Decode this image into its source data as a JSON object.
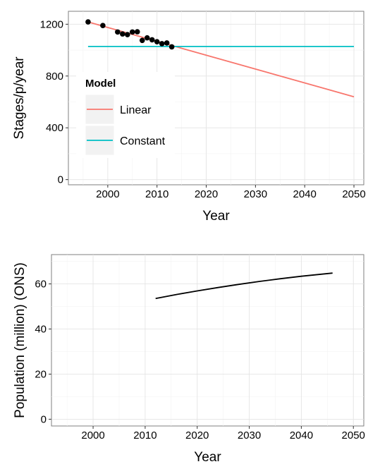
{
  "chart_data": [
    {
      "type": "line",
      "xlabel": "Year",
      "ylabel": "Stages/p/year",
      "xlim": [
        1992,
        2052
      ],
      "ylim": [
        -40,
        1300
      ],
      "x_ticks": [
        2000,
        2010,
        2020,
        2030,
        2040,
        2050
      ],
      "y_ticks": [
        0,
        400,
        800,
        1200
      ],
      "grid": true,
      "legend": {
        "title": "Model",
        "placement": "inside-left"
      },
      "points": {
        "x": [
          1996,
          1999,
          2002,
          2003,
          2004,
          2005,
          2006,
          2007,
          2008,
          2009,
          2010,
          2011,
          2012,
          2013
        ],
        "y": [
          1218,
          1190,
          1140,
          1125,
          1120,
          1140,
          1142,
          1075,
          1095,
          1080,
          1065,
          1050,
          1055,
          1025
        ]
      },
      "series": [
        {
          "name": "Linear",
          "color": "#F8766D",
          "x": [
            1996,
            2050
          ],
          "y": [
            1218,
            640
          ]
        },
        {
          "name": "Constant",
          "color": "#00BFC4",
          "x": [
            1996,
            2050
          ],
          "y": [
            1028,
            1028
          ]
        }
      ]
    },
    {
      "type": "line",
      "xlabel": "Year",
      "ylabel": "Population (million) (ONS)",
      "xlim": [
        1992,
        2052
      ],
      "ylim": [
        -3,
        73
      ],
      "x_ticks": [
        2000,
        2010,
        2020,
        2030,
        2040,
        2050
      ],
      "y_ticks": [
        0,
        20,
        40,
        60
      ],
      "grid": true,
      "series": [
        {
          "color": "#000000",
          "x": [
            2012,
            2016,
            2020,
            2024,
            2028,
            2032,
            2036,
            2040,
            2046
          ],
          "y": [
            53.5,
            55.3,
            56.9,
            58.4,
            59.8,
            61.1,
            62.3,
            63.4,
            64.8
          ]
        }
      ]
    }
  ]
}
